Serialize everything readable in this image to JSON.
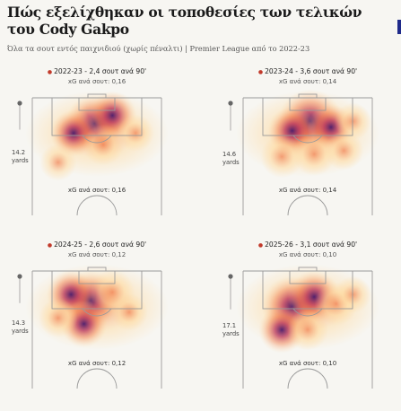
{
  "title": "Πώς εξελίχθηκαν οι τοποθεσίες των τελικών του Cody Gakpo",
  "subtitle": "Όλα τα σουτ εντός παιχνιδιού (χωρίς πέναλτι) | Premier League από το 2022-23",
  "colors": {
    "accent": "#1f2a8a",
    "pitch_line": "#9a9a9a",
    "heat_low": "#ffd89a",
    "heat_mid": "#f07a4a",
    "heat_high": "#4a1a6a"
  },
  "chart_data": [
    {
      "type": "heatmap",
      "season_label": "2022-23 - 2,4 σουτ ανά 90'",
      "xg_per_shot_top": "xG ανά σουτ: 0,16",
      "xg_per_shot_bottom": "xG ανά σουτ: 0,16",
      "avg_distance": "14.2",
      "distance_unit": "yards",
      "shots_per_90": 2.4,
      "xg_per_shot": 0.16,
      "hotspots": [
        {
          "x": 0.48,
          "y": 0.22,
          "intensity": 0.85
        },
        {
          "x": 0.62,
          "y": 0.15,
          "intensity": 0.6
        },
        {
          "x": 0.32,
          "y": 0.3,
          "intensity": 0.55
        },
        {
          "x": 0.55,
          "y": 0.4,
          "intensity": 0.4
        },
        {
          "x": 0.2,
          "y": 0.55,
          "intensity": 0.3
        },
        {
          "x": 0.8,
          "y": 0.3,
          "intensity": 0.3
        }
      ]
    },
    {
      "type": "heatmap",
      "season_label": "2023-24 - 3,6 σουτ ανά 90'",
      "xg_per_shot_top": "xG ανά σουτ: 0,14",
      "xg_per_shot_bottom": "xG ανά σουτ: 0,14",
      "avg_distance": "14.6",
      "distance_unit": "yards",
      "shots_per_90": 3.6,
      "xg_per_shot": 0.14,
      "hotspots": [
        {
          "x": 0.52,
          "y": 0.2,
          "intensity": 1.0
        },
        {
          "x": 0.38,
          "y": 0.28,
          "intensity": 0.6
        },
        {
          "x": 0.68,
          "y": 0.25,
          "intensity": 0.55
        },
        {
          "x": 0.3,
          "y": 0.5,
          "intensity": 0.45
        },
        {
          "x": 0.55,
          "y": 0.48,
          "intensity": 0.45
        },
        {
          "x": 0.78,
          "y": 0.45,
          "intensity": 0.35
        },
        {
          "x": 0.85,
          "y": 0.2,
          "intensity": 0.3
        }
      ]
    },
    {
      "type": "heatmap",
      "season_label": "2024-25 - 2,6 σουτ ανά 90'",
      "xg_per_shot_top": "xG ανά σουτ: 0,12",
      "xg_per_shot_bottom": "xG ανά σουτ: 0,12",
      "avg_distance": "14.3",
      "distance_unit": "yards",
      "shots_per_90": 2.6,
      "xg_per_shot": 0.12,
      "hotspots": [
        {
          "x": 0.45,
          "y": 0.25,
          "intensity": 0.85
        },
        {
          "x": 0.3,
          "y": 0.2,
          "intensity": 0.6
        },
        {
          "x": 0.62,
          "y": 0.18,
          "intensity": 0.5
        },
        {
          "x": 0.4,
          "y": 0.45,
          "intensity": 0.55
        },
        {
          "x": 0.2,
          "y": 0.4,
          "intensity": 0.35
        },
        {
          "x": 0.75,
          "y": 0.35,
          "intensity": 0.3
        }
      ]
    },
    {
      "type": "heatmap",
      "season_label": "2025-26 - 3,1 σουτ ανά 90'",
      "xg_per_shot_top": "xG ανά σουτ: 0,10",
      "xg_per_shot_bottom": "xG ανά σουτ: 0,10",
      "avg_distance": "17.1",
      "distance_unit": "yards",
      "shots_per_90": 3.1,
      "xg_per_shot": 0.1,
      "hotspots": [
        {
          "x": 0.38,
          "y": 0.3,
          "intensity": 0.9
        },
        {
          "x": 0.55,
          "y": 0.22,
          "intensity": 0.7
        },
        {
          "x": 0.3,
          "y": 0.5,
          "intensity": 0.55
        },
        {
          "x": 0.72,
          "y": 0.28,
          "intensity": 0.45
        },
        {
          "x": 0.5,
          "y": 0.5,
          "intensity": 0.4
        },
        {
          "x": 0.85,
          "y": 0.2,
          "intensity": 0.3
        }
      ]
    }
  ]
}
